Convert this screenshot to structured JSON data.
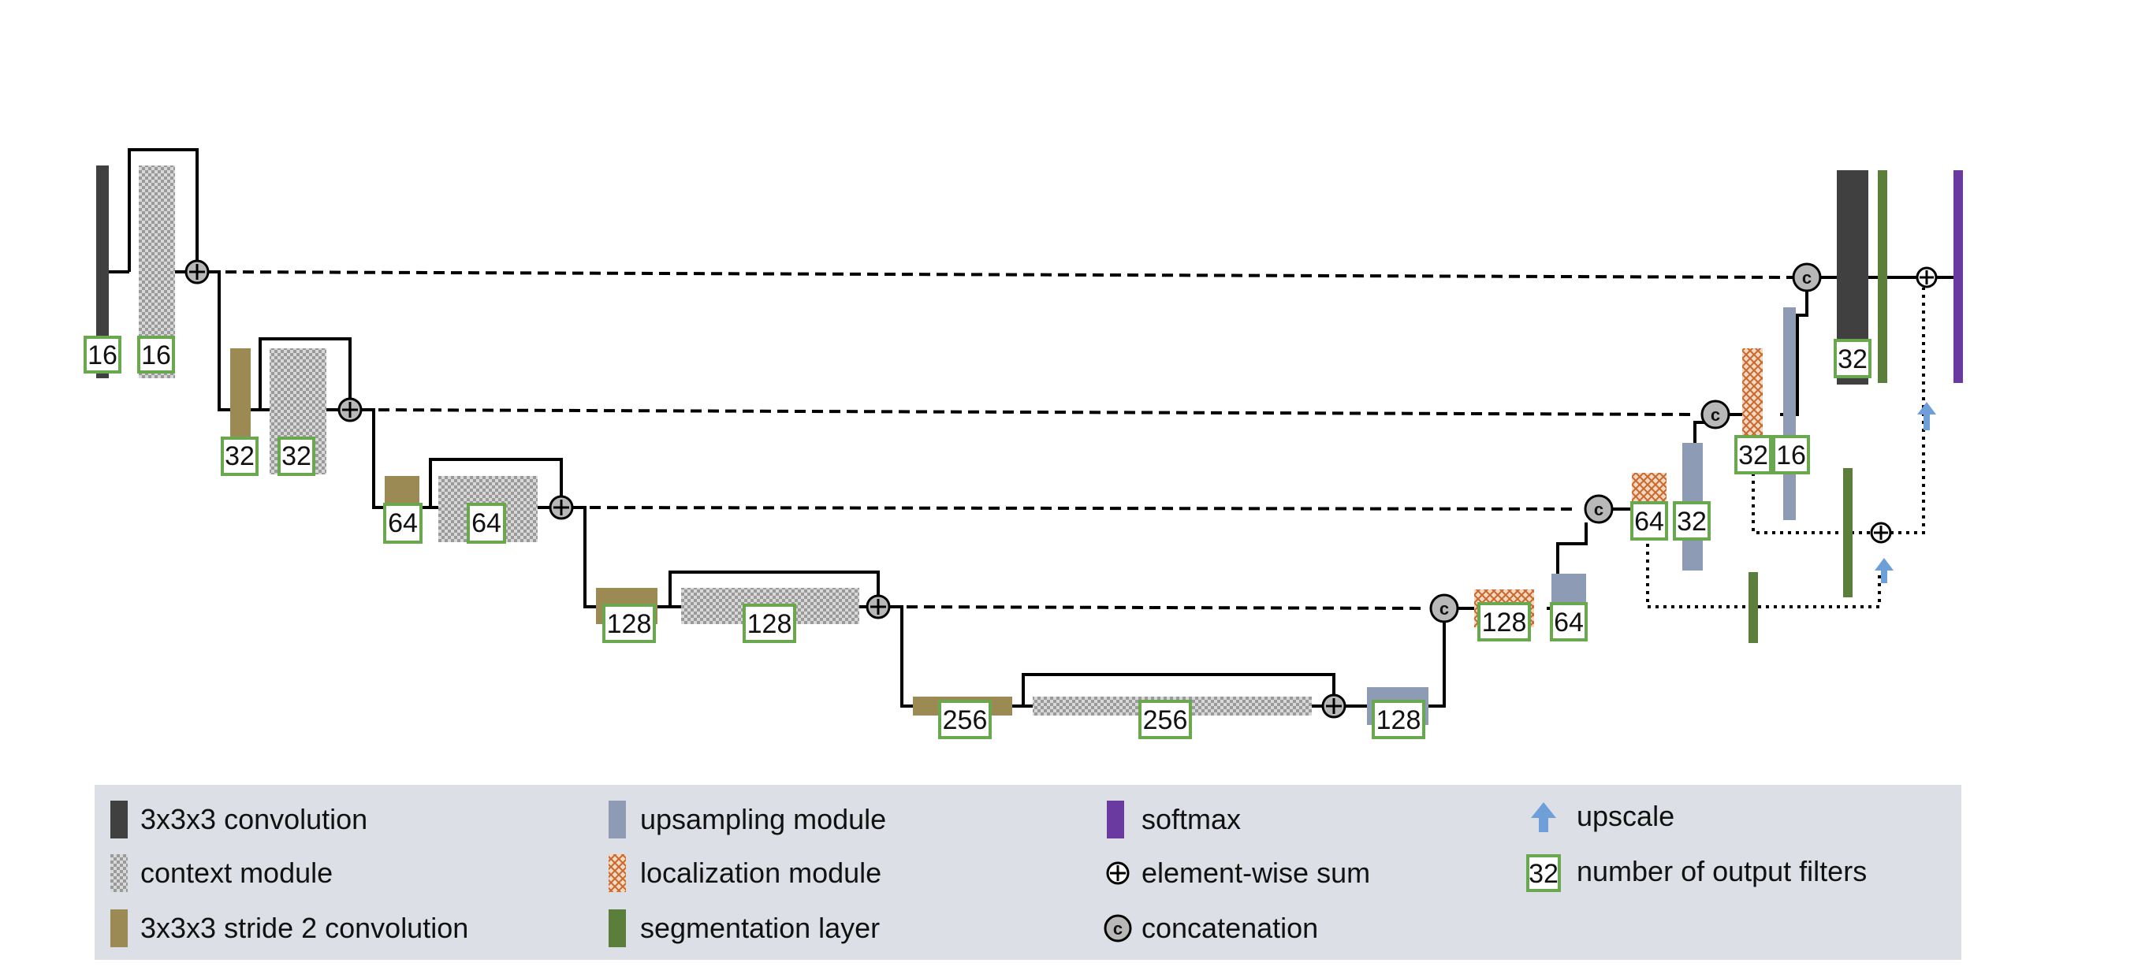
{
  "filters": {
    "conv1": "16",
    "ctx1": "16",
    "s2c2": "32",
    "ctx2": "32",
    "s2c3": "64",
    "ctx3": "64",
    "s2c4": "128",
    "ctx4": "128",
    "s2c5": "256",
    "ctx5": "256",
    "up4": "128",
    "loc4": "128",
    "up3": "64",
    "loc3": "64",
    "up2": "32",
    "loc2": "32",
    "up1": "16",
    "final_conv": "32"
  },
  "symbols": {
    "concat": "c"
  },
  "legend": {
    "items": [
      {
        "icon": "conv3-icon",
        "label": "3x3x3 convolution"
      },
      {
        "icon": "context-module-icon",
        "label": "context module"
      },
      {
        "icon": "stride2-conv-icon",
        "label": "3x3x3 stride 2 convolution"
      },
      {
        "icon": "upsampling-module-icon",
        "label": "upsampling  module"
      },
      {
        "icon": "localization-module-icon",
        "label": "localization module"
      },
      {
        "icon": "segmentation-layer-icon",
        "label": "segmentation layer"
      },
      {
        "icon": "softmax-icon",
        "label": "softmax"
      },
      {
        "icon": "sum-icon",
        "label": "element-wise sum"
      },
      {
        "icon": "concat-icon",
        "label": "concatenation"
      },
      {
        "icon": "upscale-icon",
        "label": "upscale"
      },
      {
        "icon": "filter-count-icon",
        "label": "number of output filters",
        "sample": "32"
      }
    ]
  },
  "colors": {
    "conv": "#404040",
    "stride2": "#9c8a55",
    "upsampling": "#8e9bb4",
    "localization": "#d0783a",
    "segmentation": "#5b7f3a",
    "softmax": "#6b3aa0",
    "upscale": "#6f9fd8",
    "filter_box": "#6aa84f",
    "legend_bg": "#dcdfe5",
    "node": "#b8b8b8"
  }
}
